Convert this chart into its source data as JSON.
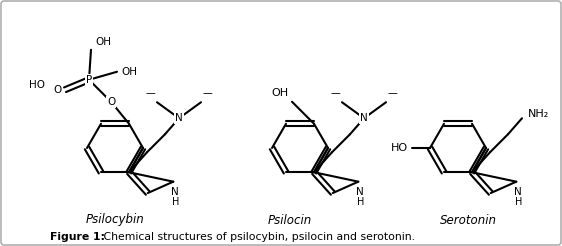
{
  "title_bold": "Figure 1:",
  "title_normal": " Chemical structures of psilocybin, psilocin and serotonin.",
  "compound_labels": [
    "Psilocybin",
    "Psilocin",
    "Serotonin"
  ],
  "background_color": "#ffffff",
  "border_color": "#b0b0b0",
  "fig_width": 5.62,
  "fig_height": 2.46,
  "dpi": 100
}
